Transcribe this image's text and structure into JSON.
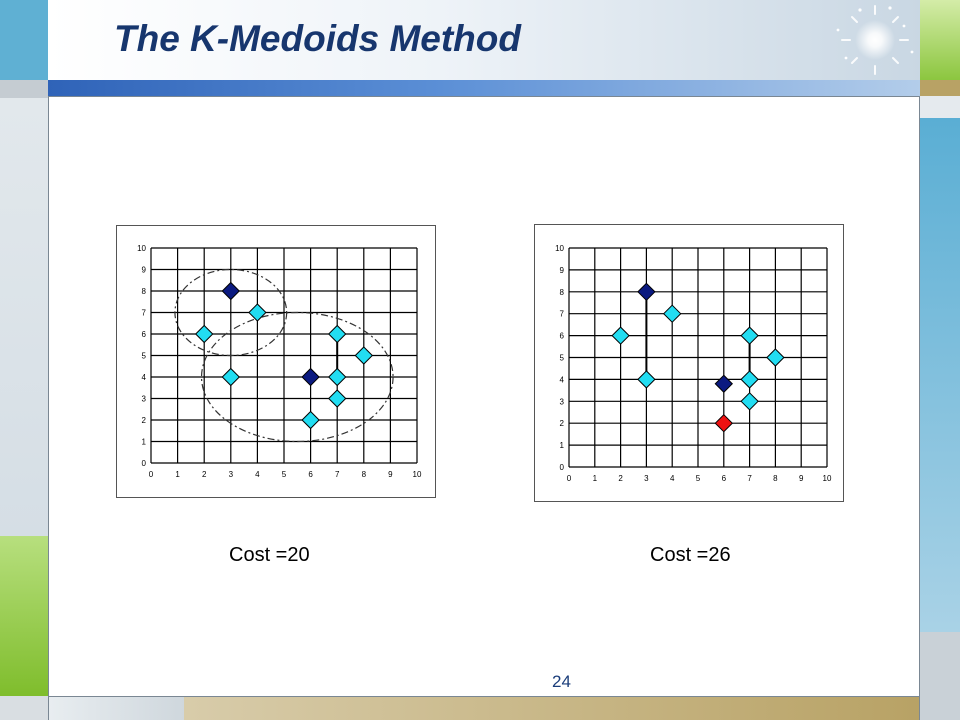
{
  "slide": {
    "title": "The K-Medoids Method",
    "page_number": "24"
  },
  "colors": {
    "medoid": "#0b1a80",
    "point": "#22ddf2",
    "swap_candidate": "#ee1111",
    "title": "#17366e",
    "accent_blue": "#2f63b8",
    "accent_green": "#8cc63f",
    "accent_tan": "#b8a265"
  },
  "chart_data": [
    {
      "type": "scatter",
      "caption": "Cost =20",
      "xlim": [
        0,
        10
      ],
      "ylim": [
        0,
        10
      ],
      "x_ticks": [
        "0",
        "1",
        "2",
        "3",
        "4",
        "5",
        "6",
        "7",
        "8",
        "9",
        "10"
      ],
      "y_ticks": [
        "0",
        "1",
        "2",
        "3",
        "4",
        "5",
        "6",
        "7",
        "8",
        "9",
        "10"
      ],
      "grid": true,
      "medoids": [
        [
          3,
          8
        ],
        [
          6,
          4
        ]
      ],
      "points": [
        [
          2,
          6
        ],
        [
          3,
          4
        ],
        [
          4,
          7
        ],
        [
          6,
          2
        ],
        [
          7,
          3
        ],
        [
          7,
          4
        ],
        [
          7,
          6
        ],
        [
          8,
          5
        ]
      ],
      "swap_candidates": [],
      "links": [
        [
          [
            7,
            6
          ],
          [
            7,
            4
          ]
        ]
      ],
      "clusters_outlined": true
    },
    {
      "type": "scatter",
      "caption": "Cost =26",
      "xlim": [
        0,
        10
      ],
      "ylim": [
        0,
        10
      ],
      "x_ticks": [
        "0",
        "1",
        "2",
        "3",
        "4",
        "5",
        "6",
        "7",
        "8",
        "9",
        "10"
      ],
      "y_ticks": [
        "0",
        "1",
        "2",
        "3",
        "4",
        "5",
        "6",
        "7",
        "8",
        "9",
        "10"
      ],
      "grid": true,
      "medoids": [
        [
          3,
          8
        ],
        [
          6,
          3.8
        ]
      ],
      "points": [
        [
          2,
          6
        ],
        [
          3,
          4
        ],
        [
          4,
          7
        ],
        [
          7,
          3
        ],
        [
          7,
          4
        ],
        [
          7,
          6
        ],
        [
          8,
          5
        ]
      ],
      "swap_candidates": [
        [
          6,
          2
        ]
      ],
      "links": [
        [
          [
            3,
            8
          ],
          [
            3,
            4
          ]
        ],
        [
          [
            7,
            6
          ],
          [
            7,
            4
          ]
        ]
      ],
      "clusters_outlined": false
    }
  ]
}
